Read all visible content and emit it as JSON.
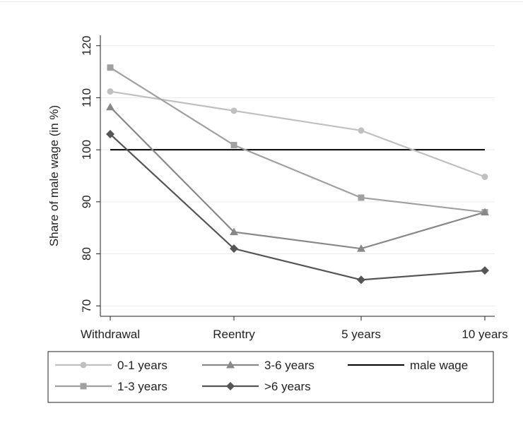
{
  "chart_data": {
    "type": "line",
    "title": "",
    "xlabel": "",
    "ylabel": "Share of male wage (in %)",
    "categories": [
      "Withdrawal",
      "Reentry",
      "5 years",
      "10 years"
    ],
    "ylim": [
      68,
      122
    ],
    "yticks": [
      70,
      80,
      90,
      100,
      110,
      120
    ],
    "grid": true,
    "legend_position": "bottom",
    "series": [
      {
        "name": "0-1 years",
        "values": [
          111.2,
          107.5,
          103.7,
          94.8
        ],
        "color": "#c0c0c0",
        "marker": "circle"
      },
      {
        "name": "1-3 years",
        "values": [
          115.8,
          100.9,
          90.8,
          88.0
        ],
        "color": "#a0a0a0",
        "marker": "square"
      },
      {
        "name": "3-6 years",
        "values": [
          108.2,
          84.2,
          81.0,
          88.0
        ],
        "color": "#888888",
        "marker": "triangle"
      },
      {
        "name": ">6 years",
        "values": [
          103.0,
          81.0,
          75.0,
          76.8
        ],
        "color": "#555555",
        "marker": "diamond"
      }
    ],
    "reference_lines": [
      {
        "name": "male wage",
        "value": 100,
        "color": "#000000"
      }
    ]
  }
}
